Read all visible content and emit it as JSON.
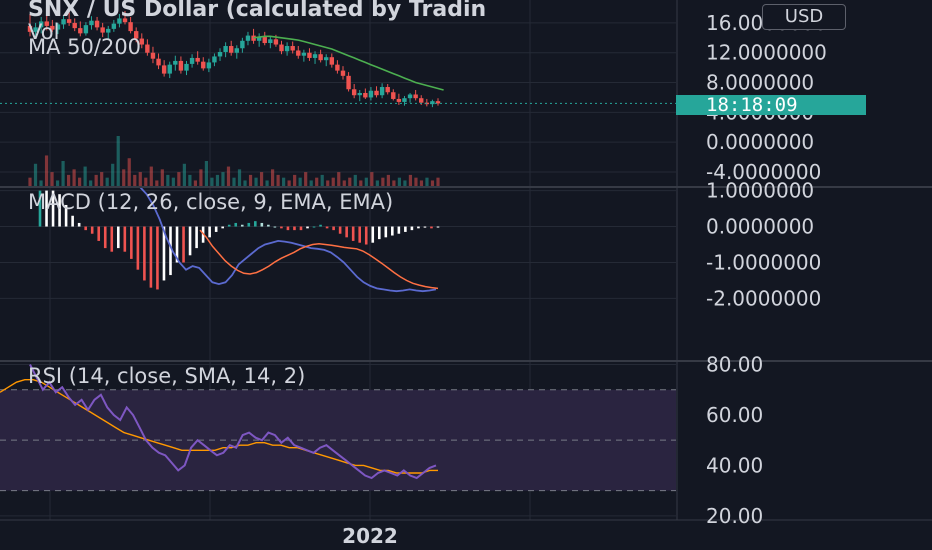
{
  "title": "SNX / US Dollar (calculated by Tradin",
  "currency_button": "USD",
  "countdown": "18:18:09",
  "legend": {
    "vol": "Vol",
    "ma": "MA 50/200",
    "macd": "MACD (12, 26, close, 9, EMA, EMA)",
    "rsi": "RSI (14, close, SMA, 14, 2)"
  },
  "time_label": "2022",
  "colors": {
    "bg": "#131722",
    "up": "#26a69a",
    "down": "#ef5350",
    "ma": "#4caf50",
    "macd_line": "#5b6ad0",
    "signal_line": "#ff7043",
    "rsi_line": "#7e57c2",
    "rsi_ma": "#ff9800",
    "rsi_band": "#2a2440",
    "price_tag": "#26a69a"
  },
  "chart_data": [
    {
      "type": "candlestick",
      "price_axis": [
        "16.0000000",
        "12.0000000",
        "8.0000000",
        "4.0000000",
        "0.0000000",
        "-4.0000000"
      ],
      "ylim": [
        -4,
        18
      ],
      "candles": [
        {
          "o": 15.6,
          "h": 17.2,
          "l": 14.2,
          "c": 14.8
        },
        {
          "o": 14.8,
          "h": 16.0,
          "l": 13.9,
          "c": 15.4
        },
        {
          "o": 15.4,
          "h": 16.8,
          "l": 14.6,
          "c": 16.2
        },
        {
          "o": 16.2,
          "h": 17.5,
          "l": 15.0,
          "c": 15.6
        },
        {
          "o": 15.6,
          "h": 16.4,
          "l": 14.8,
          "c": 15.1
        },
        {
          "o": 15.1,
          "h": 16.0,
          "l": 14.5,
          "c": 15.8
        },
        {
          "o": 15.8,
          "h": 17.0,
          "l": 15.2,
          "c": 16.5
        },
        {
          "o": 16.5,
          "h": 17.4,
          "l": 15.6,
          "c": 16.0
        },
        {
          "o": 16.0,
          "h": 16.6,
          "l": 14.9,
          "c": 15.3
        },
        {
          "o": 15.3,
          "h": 16.2,
          "l": 14.2,
          "c": 14.6
        },
        {
          "o": 14.6,
          "h": 16.1,
          "l": 14.3,
          "c": 15.7
        },
        {
          "o": 15.7,
          "h": 16.9,
          "l": 15.1,
          "c": 16.3
        },
        {
          "o": 16.3,
          "h": 16.8,
          "l": 15.0,
          "c": 15.4
        },
        {
          "o": 15.4,
          "h": 16.0,
          "l": 14.1,
          "c": 14.7
        },
        {
          "o": 14.7,
          "h": 15.6,
          "l": 13.8,
          "c": 15.2
        },
        {
          "o": 15.2,
          "h": 16.4,
          "l": 14.8,
          "c": 15.9
        },
        {
          "o": 15.9,
          "h": 17.2,
          "l": 15.4,
          "c": 16.6
        },
        {
          "o": 16.6,
          "h": 17.6,
          "l": 15.8,
          "c": 16.1
        },
        {
          "o": 16.1,
          "h": 16.8,
          "l": 14.6,
          "c": 14.9
        },
        {
          "o": 14.9,
          "h": 15.4,
          "l": 13.4,
          "c": 13.9
        },
        {
          "o": 13.9,
          "h": 14.6,
          "l": 12.6,
          "c": 13.1
        },
        {
          "o": 13.1,
          "h": 13.8,
          "l": 11.6,
          "c": 12.0
        },
        {
          "o": 12.0,
          "h": 12.8,
          "l": 10.6,
          "c": 11.2
        },
        {
          "o": 11.2,
          "h": 11.9,
          "l": 9.8,
          "c": 10.3
        },
        {
          "o": 10.3,
          "h": 11.0,
          "l": 8.8,
          "c": 9.2
        },
        {
          "o": 9.2,
          "h": 10.8,
          "l": 8.6,
          "c": 10.4
        },
        {
          "o": 10.4,
          "h": 11.6,
          "l": 9.6,
          "c": 10.9
        },
        {
          "o": 10.9,
          "h": 11.5,
          "l": 9.2,
          "c": 9.6
        },
        {
          "o": 9.6,
          "h": 10.9,
          "l": 9.0,
          "c": 10.5
        },
        {
          "o": 10.5,
          "h": 11.8,
          "l": 10.0,
          "c": 11.3
        },
        {
          "o": 11.3,
          "h": 12.2,
          "l": 10.4,
          "c": 10.8
        },
        {
          "o": 10.8,
          "h": 11.4,
          "l": 9.6,
          "c": 9.9
        },
        {
          "o": 9.9,
          "h": 11.2,
          "l": 9.4,
          "c": 10.7
        },
        {
          "o": 10.7,
          "h": 11.9,
          "l": 10.2,
          "c": 11.5
        },
        {
          "o": 11.5,
          "h": 12.6,
          "l": 10.9,
          "c": 12.1
        },
        {
          "o": 12.1,
          "h": 13.4,
          "l": 11.4,
          "c": 12.9
        },
        {
          "o": 12.9,
          "h": 13.6,
          "l": 11.6,
          "c": 12.0
        },
        {
          "o": 12.0,
          "h": 13.0,
          "l": 11.2,
          "c": 12.6
        },
        {
          "o": 12.6,
          "h": 14.0,
          "l": 12.0,
          "c": 13.6
        },
        {
          "o": 13.6,
          "h": 14.8,
          "l": 13.0,
          "c": 14.3
        },
        {
          "o": 14.3,
          "h": 15.2,
          "l": 13.2,
          "c": 13.6
        },
        {
          "o": 13.6,
          "h": 14.6,
          "l": 12.8,
          "c": 14.1
        },
        {
          "o": 14.1,
          "h": 14.8,
          "l": 13.0,
          "c": 13.3
        },
        {
          "o": 13.3,
          "h": 14.2,
          "l": 12.6,
          "c": 13.8
        },
        {
          "o": 13.8,
          "h": 14.4,
          "l": 12.8,
          "c": 13.1
        },
        {
          "o": 13.1,
          "h": 13.6,
          "l": 11.8,
          "c": 12.2
        },
        {
          "o": 12.2,
          "h": 13.4,
          "l": 11.6,
          "c": 12.9
        },
        {
          "o": 12.9,
          "h": 13.5,
          "l": 11.9,
          "c": 12.3
        },
        {
          "o": 12.3,
          "h": 12.9,
          "l": 11.2,
          "c": 11.6
        },
        {
          "o": 11.6,
          "h": 12.4,
          "l": 10.8,
          "c": 12.0
        },
        {
          "o": 12.0,
          "h": 12.6,
          "l": 10.9,
          "c": 11.3
        },
        {
          "o": 11.3,
          "h": 12.2,
          "l": 10.5,
          "c": 11.8
        },
        {
          "o": 11.8,
          "h": 12.4,
          "l": 10.7,
          "c": 11.0
        },
        {
          "o": 11.0,
          "h": 11.8,
          "l": 10.2,
          "c": 11.4
        },
        {
          "o": 11.4,
          "h": 11.9,
          "l": 10.0,
          "c": 10.4
        },
        {
          "o": 10.4,
          "h": 11.0,
          "l": 9.2,
          "c": 9.6
        },
        {
          "o": 9.6,
          "h": 10.2,
          "l": 8.4,
          "c": 8.9
        },
        {
          "o": 8.9,
          "h": 9.4,
          "l": 6.8,
          "c": 7.1
        },
        {
          "o": 7.1,
          "h": 7.8,
          "l": 5.9,
          "c": 6.3
        },
        {
          "o": 6.3,
          "h": 7.0,
          "l": 5.5,
          "c": 6.6
        },
        {
          "o": 6.6,
          "h": 7.2,
          "l": 5.8,
          "c": 6.0
        },
        {
          "o": 6.0,
          "h": 7.4,
          "l": 5.6,
          "c": 6.9
        },
        {
          "o": 6.9,
          "h": 7.5,
          "l": 6.0,
          "c": 6.3
        },
        {
          "o": 6.3,
          "h": 7.9,
          "l": 5.9,
          "c": 7.4
        },
        {
          "o": 7.4,
          "h": 7.8,
          "l": 6.4,
          "c": 6.7
        },
        {
          "o": 6.7,
          "h": 7.1,
          "l": 5.6,
          "c": 5.8
        },
        {
          "o": 5.8,
          "h": 6.5,
          "l": 5.0,
          "c": 5.4
        },
        {
          "o": 5.4,
          "h": 6.2,
          "l": 4.9,
          "c": 5.9
        },
        {
          "o": 5.9,
          "h": 6.6,
          "l": 5.3,
          "c": 6.4
        },
        {
          "o": 6.4,
          "h": 7.0,
          "l": 5.6,
          "c": 5.9
        },
        {
          "o": 5.9,
          "h": 6.3,
          "l": 5.0,
          "c": 5.3
        },
        {
          "o": 5.3,
          "h": 5.8,
          "l": 4.8,
          "c": 5.1
        },
        {
          "o": 5.1,
          "h": 5.7,
          "l": 4.7,
          "c": 5.5
        },
        {
          "o": 5.5,
          "h": 5.9,
          "l": 4.9,
          "c": 5.2
        }
      ],
      "ma50": [
        null,
        null,
        null,
        null,
        null,
        null,
        null,
        null,
        null,
        null,
        null,
        null,
        null,
        null,
        null,
        null,
        null,
        null,
        null,
        null,
        null,
        null,
        null,
        null,
        null,
        null,
        null,
        null,
        null,
        null,
        null,
        null,
        null,
        null,
        null,
        null,
        null,
        null,
        null,
        null,
        14.0,
        14.1,
        14.2,
        14.2,
        14.1,
        14.0,
        13.9,
        13.8,
        13.7,
        13.5,
        13.3,
        13.1,
        12.9,
        12.7,
        12.5,
        12.2,
        11.9,
        11.6,
        11.3,
        11.0,
        10.7,
        10.4,
        10.1,
        9.8,
        9.5,
        9.2,
        8.9,
        8.6,
        8.3,
        8.0,
        7.8,
        7.6,
        7.4,
        7.2,
        7.0
      ],
      "volume": [
        3,
        8,
        2,
        11,
        5,
        2,
        9,
        4,
        6,
        3,
        7,
        2,
        4,
        5,
        3,
        8,
        18,
        6,
        10,
        4,
        5,
        3,
        7,
        2,
        6,
        4,
        3,
        5,
        8,
        4,
        2,
        6,
        9,
        3,
        4,
        5,
        7,
        3,
        6,
        2,
        4,
        3,
        5,
        2,
        6,
        4,
        3,
        2,
        4,
        3,
        5,
        2,
        3,
        4,
        2,
        3,
        5,
        2,
        3,
        4,
        2,
        3,
        5,
        2,
        3,
        4,
        2,
        3,
        2,
        4,
        3,
        2,
        3,
        2,
        3
      ]
    },
    {
      "type": "macd",
      "price_axis": [
        "1.0000000",
        "0.0000000",
        "-1.0000000",
        "-2.0000000"
      ],
      "ylim": [
        -2.6,
        1.1
      ],
      "histogram": [
        1.0,
        1.0,
        1.0,
        0.9,
        0.6,
        0.3,
        0.1,
        -0.1,
        -0.2,
        -0.4,
        -0.6,
        -0.7,
        -0.6,
        -0.7,
        -0.9,
        -1.2,
        -1.5,
        -1.7,
        -1.75,
        -1.5,
        -1.35,
        -1.0,
        -1.0,
        -0.8,
        -0.6,
        -0.45,
        -0.3,
        -0.15,
        -0.05,
        0.05,
        0.1,
        0.05,
        0.1,
        0.15,
        0.1,
        0.05,
        0.0,
        -0.05,
        -0.1,
        -0.1,
        -0.1,
        -0.05,
        0.0,
        0.05,
        -0.05,
        -0.1,
        -0.2,
        -0.3,
        -0.4,
        -0.45,
        -0.5,
        -0.45,
        -0.35,
        -0.3,
        -0.25,
        -0.2,
        -0.15,
        -0.1,
        -0.05,
        -0.03,
        -0.05,
        -0.02
      ],
      "macd_line": [
        1.1,
        0.9,
        0.6,
        0.2,
        -0.3,
        -0.7,
        -1.0,
        -1.2,
        -1.1,
        -1.15,
        -1.35,
        -1.55,
        -1.6,
        -1.55,
        -1.35,
        -1.05,
        -0.9,
        -0.75,
        -0.6,
        -0.5,
        -0.45,
        -0.4,
        -0.42,
        -0.45,
        -0.5,
        -0.55,
        -0.6,
        -0.62,
        -0.65,
        -0.72,
        -0.85,
        -1.0,
        -1.2,
        -1.4,
        -1.55,
        -1.65,
        -1.72,
        -1.75,
        -1.78,
        -1.8,
        -1.78,
        -1.75,
        -1.78,
        -1.8,
        -1.78,
        -1.75
      ],
      "signal_line": [
        -0.1,
        -0.3,
        -0.55,
        -0.75,
        -0.95,
        -1.1,
        -1.22,
        -1.3,
        -1.32,
        -1.28,
        -1.2,
        -1.1,
        -0.98,
        -0.88,
        -0.8,
        -0.72,
        -0.62,
        -0.55,
        -0.5,
        -0.48,
        -0.5,
        -0.52,
        -0.55,
        -0.58,
        -0.6,
        -0.62,
        -0.68,
        -0.78,
        -0.9,
        -1.02,
        -1.15,
        -1.28,
        -1.4,
        -1.5,
        -1.58,
        -1.63,
        -1.67,
        -1.7,
        -1.72
      ]
    },
    {
      "type": "rsi",
      "price_axis": [
        "80.00",
        "60.00",
        "40.00",
        "20.00"
      ],
      "ylim": [
        12,
        81
      ],
      "band": [
        30,
        70
      ],
      "midline": 50,
      "rsi": [
        80,
        75,
        70,
        73,
        69,
        71,
        67,
        64,
        66,
        62,
        66,
        68,
        63,
        60,
        58,
        63,
        60,
        55,
        50,
        47,
        45,
        44,
        41,
        38,
        40,
        47,
        50,
        48,
        46,
        44,
        45,
        48,
        47,
        52,
        53,
        51,
        50,
        53,
        52,
        49,
        51,
        48,
        47,
        46,
        45,
        47,
        48,
        46,
        44,
        42,
        40,
        38,
        36,
        35,
        37,
        38,
        37,
        36,
        38,
        36,
        35,
        37,
        39,
        40
      ],
      "rsi_ma": [
        69,
        71,
        73,
        74,
        74,
        73,
        71,
        69,
        67,
        65,
        63,
        61,
        59,
        57,
        55,
        53,
        52,
        51,
        50,
        49,
        48,
        47,
        46,
        46,
        46,
        46,
        46,
        47,
        47,
        48,
        48,
        49,
        49,
        48,
        48,
        47,
        47,
        46,
        45,
        44,
        43,
        42,
        41,
        40,
        40,
        39,
        38,
        38,
        37,
        37,
        37,
        37,
        38,
        38
      ]
    }
  ]
}
